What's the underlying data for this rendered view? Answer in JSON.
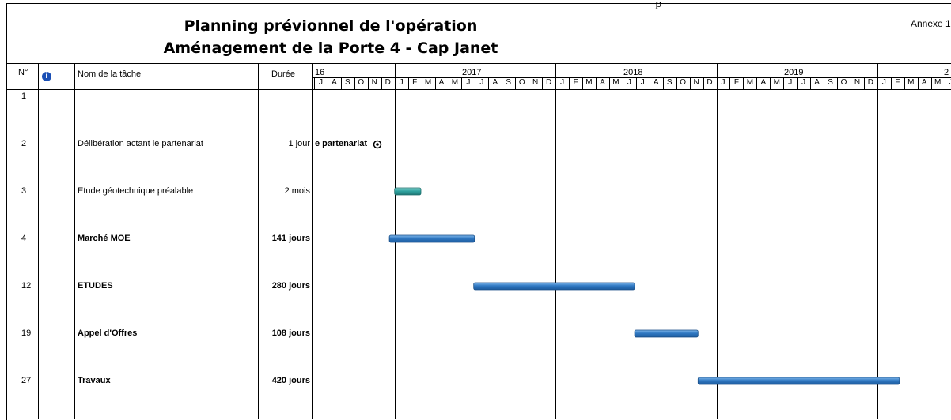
{
  "top_marker": "p",
  "title_line1": "Planning prévionnel de l'opération",
  "title_line2": "Aménagement de la Porte 4 - Cap Janet",
  "annexe": "Annexe 1",
  "columns": {
    "id": "N°",
    "name": "Nom de la tâche",
    "duration": "Durée",
    "info_icon": "info-icon"
  },
  "years_visible": [
    "16",
    "2017",
    "2018",
    "2019",
    "2"
  ],
  "months_visible": [
    "J",
    "A",
    "S",
    "O",
    "N",
    "D",
    "J",
    "F",
    "M",
    "A",
    "M",
    "J",
    "J",
    "A",
    "S",
    "O",
    "N",
    "D",
    "J",
    "F",
    "M",
    "A",
    "M",
    "J",
    "J",
    "A",
    "S",
    "O",
    "N",
    "D",
    "J",
    "F",
    "M",
    "A",
    "M",
    "J",
    "J",
    "A",
    "S",
    "O",
    "N",
    "D",
    "J",
    "F",
    "M",
    "A",
    "M",
    "J"
  ],
  "milestone_label": "e partenariat",
  "colors": {
    "bar_blue": "#2f78c2",
    "bar_teal": "#2fa3a0",
    "grid": "#000000"
  },
  "chart_data": {
    "type": "gantt",
    "title": "Planning prévionnel de l'opération — Aménagement de la Porte 4 - Cap Janet",
    "timescale": {
      "start": "2016-07",
      "end": "2020-06",
      "unit": "month"
    },
    "tasks": [
      {
        "id": "1",
        "name": "",
        "duration": "",
        "bold": false
      },
      {
        "id": "2",
        "name": "Délibération actant le partenariat",
        "duration": "1 jour",
        "bold": false,
        "milestone": "2016-12-10"
      },
      {
        "id": "3",
        "name": "Etude géotechnique préalable",
        "duration": "2 mois",
        "bold": false,
        "start": "2017-01-01",
        "end": "2017-02-28"
      },
      {
        "id": "4",
        "name": "Marché MOE",
        "duration": "141 jours",
        "bold": true,
        "start": "2016-12-20",
        "end": "2017-06-30"
      },
      {
        "id": "12",
        "name": "ETUDES",
        "duration": "280 jours",
        "bold": true,
        "start": "2017-06-28",
        "end": "2018-06-28"
      },
      {
        "id": "19",
        "name": "Appel d'Offres",
        "duration": "108 jours",
        "bold": true,
        "start": "2018-06-28",
        "end": "2018-11-20"
      },
      {
        "id": "27",
        "name": "Travaux",
        "duration": "420 jours",
        "bold": true,
        "start": "2018-11-20",
        "end": "2020-02-20"
      }
    ]
  }
}
